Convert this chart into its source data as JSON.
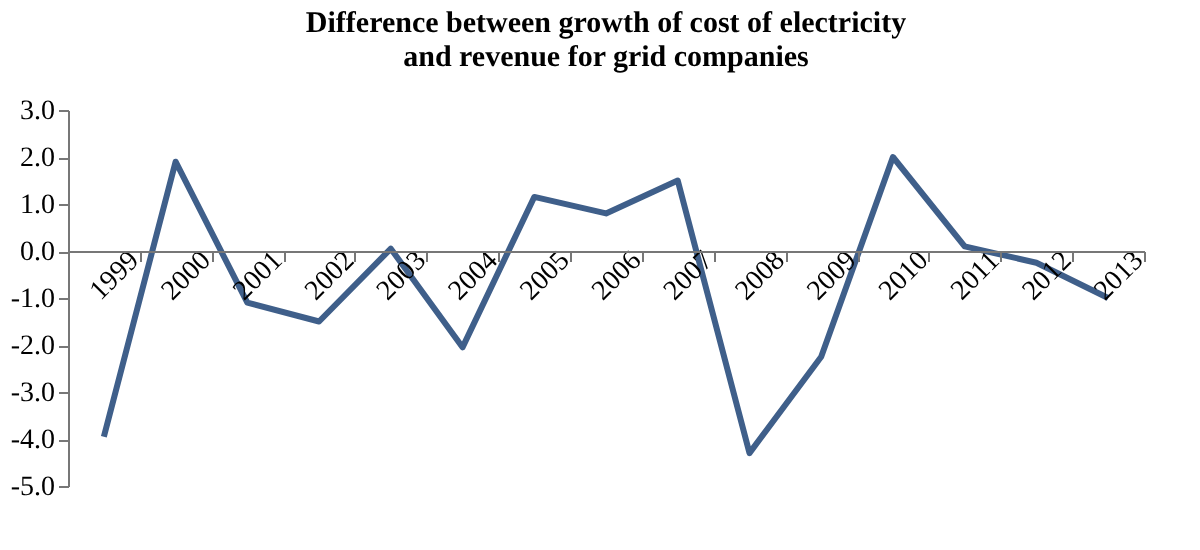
{
  "chart_data": {
    "type": "line",
    "title": [
      "Difference between growth of cost of electricity",
      "and revenue for grid companies"
    ],
    "categories": [
      "1999",
      "2000",
      "2001",
      "2002",
      "2003",
      "2004",
      "2005",
      "2006",
      "2007",
      "2008",
      "2009",
      "2010",
      "2011",
      "2012",
      "2013"
    ],
    "series": [
      {
        "color": "#3f5f8a",
        "values": [
          -3.95,
          1.9,
          -1.1,
          -1.5,
          0.05,
          -2.05,
          1.15,
          0.8,
          1.5,
          -4.3,
          -2.25,
          2.0,
          0.1,
          -0.25,
          -1.0
        ]
      }
    ],
    "ylim": [
      -5,
      3
    ],
    "yticks": [
      {
        "value": 3,
        "label": "3.0"
      },
      {
        "value": 2,
        "label": "2.0"
      },
      {
        "value": 1,
        "label": "1.0"
      },
      {
        "value": 0,
        "label": "0.0"
      },
      {
        "value": -1,
        "label": "-1.0"
      },
      {
        "value": -2,
        "label": "-2.0"
      },
      {
        "value": -3,
        "label": "-3.0"
      },
      {
        "value": -4,
        "label": "-4.0"
      },
      {
        "value": -5,
        "label": "-5.0"
      }
    ],
    "grid": false,
    "legend": false,
    "marker": "none",
    "line_style": "solid"
  }
}
